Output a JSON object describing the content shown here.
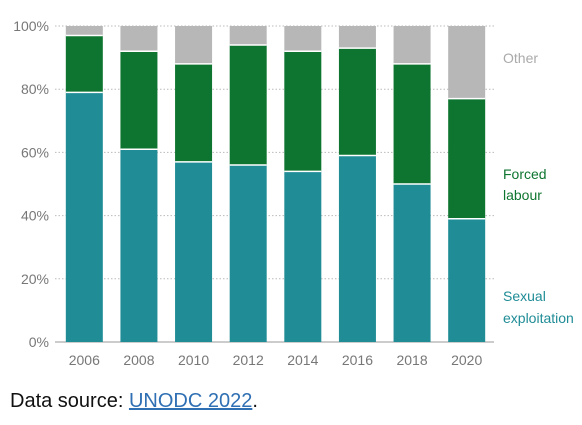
{
  "chart_data": {
    "type": "bar",
    "stacked": true,
    "categories": [
      "2006",
      "2008",
      "2010",
      "2012",
      "2014",
      "2016",
      "2018",
      "2020"
    ],
    "series": [
      {
        "name": "Sexual exploitation",
        "values": [
          79,
          61,
          57,
          56,
          54,
          59,
          50,
          39
        ]
      },
      {
        "name": "Forced labour",
        "values": [
          18,
          31,
          31,
          38,
          38,
          34,
          38,
          38
        ]
      },
      {
        "name": "Other",
        "values": [
          3,
          8,
          12,
          6,
          8,
          7,
          12,
          23
        ]
      }
    ],
    "ylim": [
      0,
      100
    ],
    "yticks": [
      "0%",
      "20%",
      "40%",
      "60%",
      "80%",
      "100%"
    ],
    "grid": true,
    "legend_placement": "right",
    "colors": {
      "Sexual exploitation": "#1f8c96",
      "Forced labour": "#0e7530",
      "Other": "#b7b7b7"
    },
    "title": "",
    "xlabel": "",
    "ylabel": ""
  },
  "legend": {
    "other": "Other",
    "forced_line1": "Forced",
    "forced_line2": "labour",
    "sexual_line1": "Sexual",
    "sexual_line2": "exploitation"
  },
  "source": {
    "prefix": "Data source: ",
    "link_text": "UNODC 2022",
    "suffix": "."
  }
}
